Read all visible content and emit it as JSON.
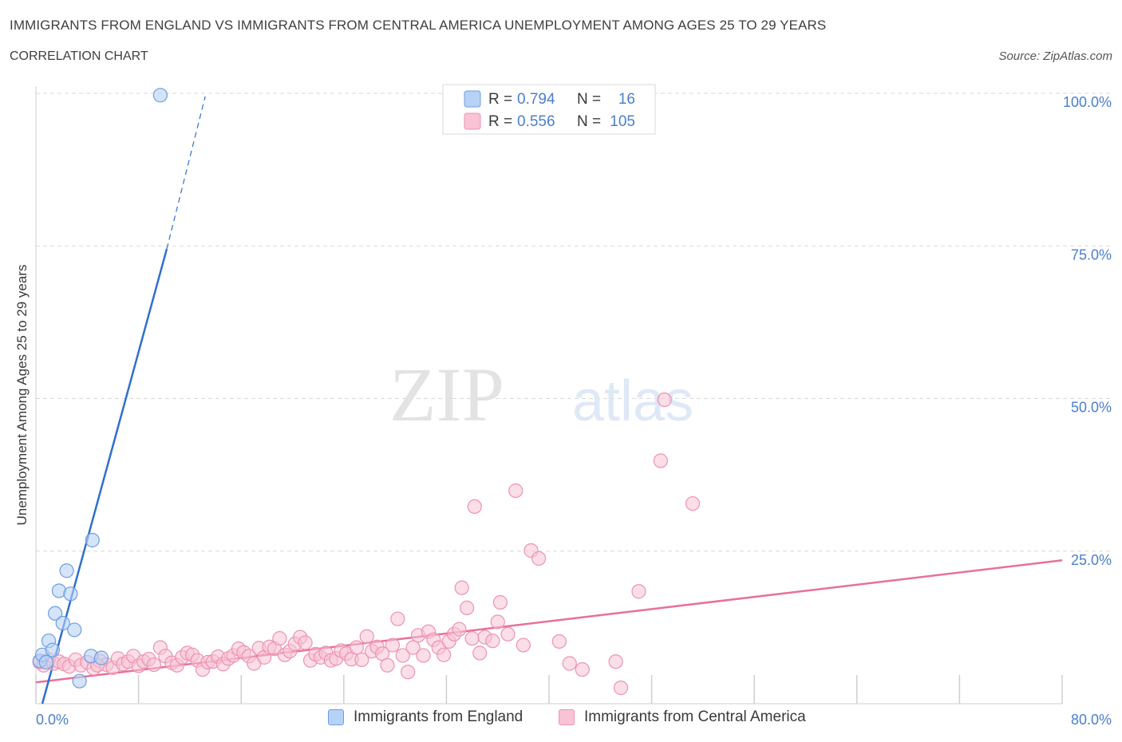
{
  "header": {
    "title": "IMMIGRANTS FROM ENGLAND VS IMMIGRANTS FROM CENTRAL AMERICA UNEMPLOYMENT AMONG AGES 25 TO 29 YEARS",
    "subtitle": "CORRELATION CHART",
    "source": "Source: ZipAtlas.com"
  },
  "watermark": {
    "zip": "ZIP",
    "atlas": "atlas"
  },
  "colors": {
    "england_fill": "#b7d2f7",
    "england_stroke": "#6d9de0",
    "england_line": "#2f6fcf",
    "ca_fill": "#f8c3d4",
    "ca_stroke": "#ec93b1",
    "ca_line": "#e8709a",
    "value_text": "#4a7fcc",
    "grid": "#d9d9d9"
  },
  "legend_top": {
    "rows": [
      {
        "r_label": "R = ",
        "r_value": "0.794",
        "n_label": "N = ",
        "n_value": "16"
      },
      {
        "r_label": "R = ",
        "r_value": "0.556",
        "n_label": "N = ",
        "n_value": "105"
      }
    ]
  },
  "legend_bottom": {
    "england": "Immigrants from England",
    "central_america": "Immigrants from Central America"
  },
  "chart_data": {
    "type": "scatter",
    "title": "IMMIGRANTS FROM ENGLAND VS IMMIGRANTS FROM CENTRAL AMERICA UNEMPLOYMENT AMONG AGES 25 TO 29 YEARS",
    "xlabel": "",
    "ylabel": "Unemployment Among Ages 25 to 29 years",
    "xlim": [
      0,
      80
    ],
    "ylim": [
      0,
      100
    ],
    "x_tick_labels": [
      "0.0%",
      "80.0%"
    ],
    "y_tick_labels": [
      "25.0%",
      "50.0%",
      "75.0%",
      "100.0%"
    ],
    "y_ticks": [
      25,
      50,
      75,
      100
    ],
    "grid": true,
    "legend_position": "top-center",
    "series": [
      {
        "name": "Immigrants from England",
        "R": 0.794,
        "N": 16,
        "trend": {
          "x0": 0.5,
          "y0": 0,
          "x1": 10.2,
          "y1": 74.5,
          "dashed_to_x": 13.2,
          "dashed_to_y": 99.5
        },
        "points": [
          [
            0.3,
            7.0
          ],
          [
            0.5,
            8.0
          ],
          [
            0.8,
            6.8
          ],
          [
            1.0,
            10.3
          ],
          [
            1.3,
            8.8
          ],
          [
            1.5,
            14.8
          ],
          [
            1.8,
            18.5
          ],
          [
            2.1,
            13.2
          ],
          [
            2.4,
            21.8
          ],
          [
            2.7,
            18.0
          ],
          [
            3.0,
            12.1
          ],
          [
            3.4,
            3.7
          ],
          [
            4.3,
            7.8
          ],
          [
            4.4,
            26.8
          ],
          [
            5.1,
            7.5
          ],
          [
            9.7,
            99.7
          ]
        ]
      },
      {
        "name": "Immigrants from Central America",
        "R": 0.556,
        "N": 105,
        "trend": {
          "x0": 0,
          "y0": 3.5,
          "x1": 80,
          "y1": 23.5
        },
        "points": [
          [
            0.3,
            6.8
          ],
          [
            0.6,
            6.3
          ],
          [
            1.0,
            7.2
          ],
          [
            1.4,
            6.6
          ],
          [
            1.8,
            6.9
          ],
          [
            2.2,
            6.5
          ],
          [
            2.6,
            6.1
          ],
          [
            3.1,
            7.2
          ],
          [
            3.5,
            6.3
          ],
          [
            4.0,
            6.8
          ],
          [
            4.5,
            5.8
          ],
          [
            5.0,
            7.0
          ],
          [
            5.5,
            6.4
          ],
          [
            6.0,
            5.9
          ],
          [
            6.4,
            7.4
          ],
          [
            6.8,
            6.5
          ],
          [
            7.2,
            6.9
          ],
          [
            7.6,
            7.8
          ],
          [
            8.0,
            6.2
          ],
          [
            8.4,
            6.9
          ],
          [
            8.8,
            7.3
          ],
          [
            9.2,
            6.4
          ],
          [
            9.7,
            9.2
          ],
          [
            10.1,
            7.8
          ],
          [
            10.6,
            6.7
          ],
          [
            11.0,
            6.3
          ],
          [
            11.4,
            7.6
          ],
          [
            11.8,
            8.3
          ],
          [
            12.2,
            8.0
          ],
          [
            12.6,
            7.1
          ],
          [
            13.0,
            5.6
          ],
          [
            13.4,
            6.8
          ],
          [
            13.8,
            6.9
          ],
          [
            14.2,
            7.7
          ],
          [
            14.6,
            6.5
          ],
          [
            15.0,
            7.4
          ],
          [
            15.4,
            7.9
          ],
          [
            15.8,
            9.0
          ],
          [
            16.2,
            8.4
          ],
          [
            16.6,
            7.8
          ],
          [
            17.0,
            6.6
          ],
          [
            17.4,
            9.1
          ],
          [
            17.8,
            7.6
          ],
          [
            18.2,
            9.3
          ],
          [
            18.6,
            9.0
          ],
          [
            19.0,
            10.7
          ],
          [
            19.4,
            8.0
          ],
          [
            19.8,
            8.6
          ],
          [
            20.2,
            9.8
          ],
          [
            20.6,
            10.9
          ],
          [
            21.0,
            10.0
          ],
          [
            21.4,
            7.1
          ],
          [
            21.8,
            8.1
          ],
          [
            22.2,
            7.6
          ],
          [
            22.6,
            8.3
          ],
          [
            23.0,
            7.1
          ],
          [
            23.4,
            7.4
          ],
          [
            23.8,
            8.7
          ],
          [
            24.2,
            8.2
          ],
          [
            24.6,
            7.3
          ],
          [
            25.0,
            9.2
          ],
          [
            25.4,
            7.2
          ],
          [
            25.8,
            11.0
          ],
          [
            26.2,
            8.6
          ],
          [
            26.6,
            9.3
          ],
          [
            27.0,
            8.2
          ],
          [
            27.4,
            6.3
          ],
          [
            27.8,
            9.6
          ],
          [
            28.2,
            13.9
          ],
          [
            28.6,
            7.9
          ],
          [
            29.0,
            5.2
          ],
          [
            29.4,
            9.2
          ],
          [
            29.8,
            11.2
          ],
          [
            30.2,
            7.9
          ],
          [
            30.6,
            11.8
          ],
          [
            31.0,
            10.5
          ],
          [
            31.4,
            9.2
          ],
          [
            31.8,
            8.0
          ],
          [
            32.2,
            10.2
          ],
          [
            32.6,
            11.4
          ],
          [
            33.0,
            12.2
          ],
          [
            33.2,
            19.0
          ],
          [
            33.6,
            15.7
          ],
          [
            34.0,
            10.7
          ],
          [
            34.2,
            32.3
          ],
          [
            34.6,
            8.3
          ],
          [
            35.0,
            10.9
          ],
          [
            35.6,
            10.3
          ],
          [
            36.0,
            13.4
          ],
          [
            36.2,
            16.6
          ],
          [
            36.8,
            11.4
          ],
          [
            37.4,
            34.9
          ],
          [
            38.0,
            9.6
          ],
          [
            38.6,
            25.1
          ],
          [
            39.2,
            23.8
          ],
          [
            40.8,
            10.2
          ],
          [
            41.6,
            6.6
          ],
          [
            42.6,
            5.6
          ],
          [
            45.2,
            6.9
          ],
          [
            45.6,
            2.6
          ],
          [
            47.0,
            18.4
          ],
          [
            48.7,
            39.8
          ],
          [
            49.0,
            49.8
          ],
          [
            51.2,
            32.8
          ],
          [
            4.8,
            6.3
          ]
        ]
      }
    ]
  }
}
